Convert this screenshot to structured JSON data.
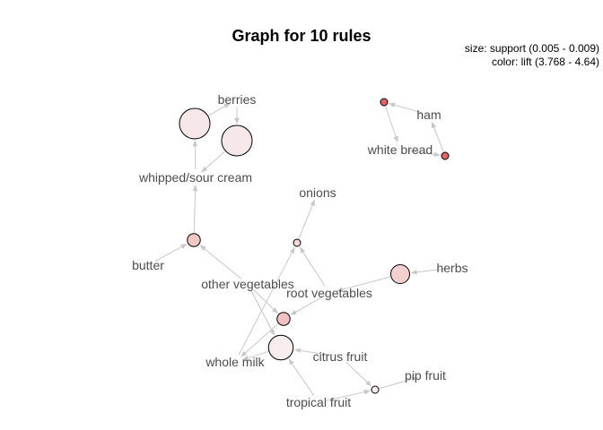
{
  "title": "Graph for 10 rules",
  "legend": {
    "size_line": "size: support (0.005 - 0.009)",
    "color_line": "color: lift (3.768 - 4.64)"
  },
  "colors": {
    "edge": "#c8c8c8",
    "label": "#4d4d4d",
    "rule_low_lift": "#f7eded",
    "rule_high_lift": "#e06666"
  },
  "items": [
    {
      "id": "berries",
      "label": "berries"
    },
    {
      "id": "whipped_sour_cream",
      "label": "whipped/sour cream"
    },
    {
      "id": "ham",
      "label": "ham"
    },
    {
      "id": "white_bread",
      "label": "white bread"
    },
    {
      "id": "onions",
      "label": "onions"
    },
    {
      "id": "butter",
      "label": "butter"
    },
    {
      "id": "other_vegetables",
      "label": "other vegetables"
    },
    {
      "id": "root_vegetables",
      "label": "root vegetables"
    },
    {
      "id": "herbs",
      "label": "herbs"
    },
    {
      "id": "whole_milk",
      "label": "whole milk"
    },
    {
      "id": "citrus_fruit",
      "label": "citrus fruit"
    },
    {
      "id": "pip_fruit",
      "label": "pip fruit"
    },
    {
      "id": "tropical_fruit",
      "label": "tropical fruit"
    }
  ],
  "rules": [
    {
      "id": "r1",
      "lhs": [
        "whipped_sour_cream"
      ],
      "rhs": "berries",
      "support": 0.009,
      "lift": 3.8
    },
    {
      "id": "r2",
      "lhs": [
        "berries"
      ],
      "rhs": "whipped_sour_cream",
      "support": 0.009,
      "lift": 3.8
    },
    {
      "id": "r3",
      "lhs": [
        "ham"
      ],
      "rhs": "white_bread",
      "support": 0.005,
      "lift": 4.64
    },
    {
      "id": "r4",
      "lhs": [
        "white_bread"
      ],
      "rhs": "ham",
      "support": 0.005,
      "lift": 4.64
    },
    {
      "id": "r5",
      "lhs": [
        "butter",
        "other_vegetables"
      ],
      "rhs": "whipped_sour_cream",
      "support": 0.006,
      "lift": 4.02
    },
    {
      "id": "r6",
      "lhs": [
        "root_vegetables",
        "whole_milk"
      ],
      "rhs": "onions",
      "support": 0.005,
      "lift": 3.9
    },
    {
      "id": "r7",
      "lhs": [
        "herbs"
      ],
      "rhs": "root_vegetables",
      "support": 0.007,
      "lift": 3.96
    },
    {
      "id": "r8",
      "lhs": [
        "other_vegetables",
        "root_vegetables"
      ],
      "rhs": "whole_milk",
      "support": 0.006,
      "lift": 4.05
    },
    {
      "id": "r9",
      "lhs": [
        "citrus_fruit",
        "tropical_fruit",
        "other_vegetables"
      ],
      "rhs": "whole_milk",
      "support": 0.008,
      "lift": 3.77
    },
    {
      "id": "r10",
      "lhs": [
        "tropical_fruit",
        "citrus_fruit"
      ],
      "rhs": "pip_fruit",
      "support": 0.005,
      "lift": 3.77
    }
  ]
}
